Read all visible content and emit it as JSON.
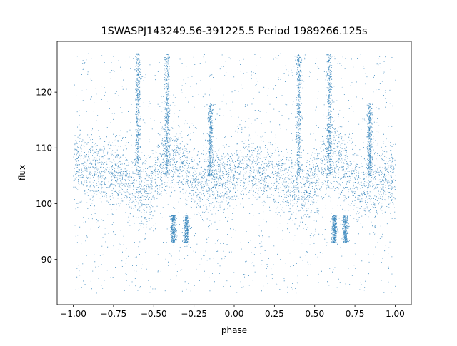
{
  "chart_data": {
    "type": "scatter",
    "title": "1SWASPJ143249.56-391225.5 Period 1989266.125s",
    "xlabel": "phase",
    "ylabel": "flux",
    "xlim": [
      -1.1,
      1.1
    ],
    "ylim": [
      81.9,
      129.1
    ],
    "x_ticks": [
      -1.0,
      -0.75,
      -0.5,
      -0.25,
      0.0,
      0.25,
      0.5,
      0.75,
      1.0
    ],
    "x_tick_labels": [
      "−1.00",
      "−0.75",
      "−0.50",
      "−0.25",
      "0.00",
      "0.25",
      "0.50",
      "0.75",
      "1.00"
    ],
    "y_ticks": [
      90,
      100,
      110,
      120
    ],
    "y_tick_labels": [
      "90",
      "100",
      "110",
      "120"
    ],
    "grid": false,
    "legend": "none",
    "series": [
      {
        "marker_color": "#1f77b4",
        "x_range": [
          -1.0,
          1.0
        ],
        "y_range": [
          84.0,
          127.0
        ],
        "band_center": 105,
        "band_range": [
          97,
          113
        ],
        "mirrored_about_zero": true,
        "features": [
          {
            "phase": -0.6,
            "y_top": 127.0
          },
          {
            "phase": -0.42,
            "y_top": 127.0
          },
          {
            "phase": 0.4,
            "y_top": 127.0
          },
          {
            "phase": 0.59,
            "y_top": 127.0
          },
          {
            "phase": -0.15,
            "y_top": 118.0
          },
          {
            "phase": 0.84,
            "y_top": 118.0
          },
          {
            "phase": -0.38,
            "y_bottom": 93.0
          },
          {
            "phase": -0.3,
            "y_bottom": 93.0
          },
          {
            "phase": 0.62,
            "y_bottom": 93.0
          },
          {
            "phase": 0.69,
            "y_bottom": 93.0
          }
        ]
      }
    ]
  }
}
